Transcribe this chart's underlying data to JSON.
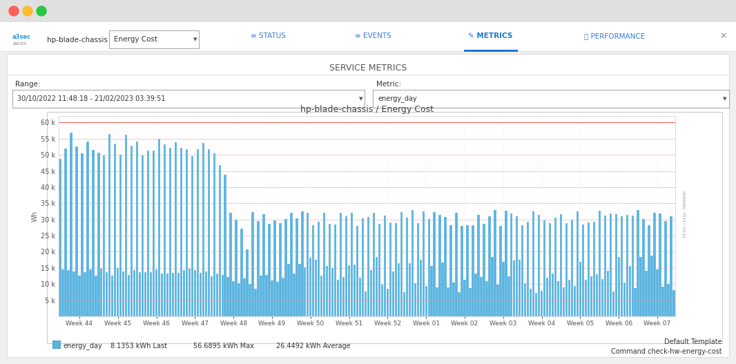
{
  "title": "hp-blade-chassis / Energy Cost",
  "ylabel": "Wh",
  "x_labels": [
    "Week 44",
    "Week 45",
    "Week 46",
    "Week 47",
    "Week 48",
    "Week 49",
    "Week 50",
    "Week 51",
    "Week 52",
    "Week 01",
    "Week 02",
    "Week 03",
    "Week 04",
    "Week 05",
    "Week 06",
    "Week 07"
  ],
  "bar_color": "#5ab4e0",
  "background_color": "#f0f0f0",
  "content_bg": "#ffffff",
  "plot_bg_color": "#ffffff",
  "grid_color_major": "#f5c0c0",
  "grid_color_minor": "#fde8e8",
  "ylim": [
    0,
    62000
  ],
  "legend_label": "energy_day",
  "legend_last": "8.1353 kWh Last",
  "legend_max": "56.6895 kWh Max",
  "legend_avg": "26.4492 kWh Average",
  "footer_right1": "Default Template",
  "footer_right2": "Command check-hw-energy-cost",
  "service_metrics_label": "SERVICE METRICS",
  "range_label": "Range:",
  "range_value": "30/10/2022 11:48:18 - 21/02/2023 03:39:51",
  "metric_label": "Metric:",
  "metric_value": "energy_day",
  "header_device": "hp-blade-chassis",
  "header_dropdown": "Energy Cost",
  "nav_status": "STATUS",
  "nav_events": "EVENTS",
  "nav_metrics": "METRICS",
  "nav_performance": "PERFORMANCE",
  "titlebar_color": "#e8e8e8",
  "nav_bar_color": "#ffffff",
  "btn_red": "#ff5f57",
  "btn_yellow": "#febc2e",
  "btn_green": "#28c840",
  "accent_blue": "#1976d2",
  "text_dark": "#333333",
  "text_gray": "#666666",
  "border_color": "#cccccc",
  "red_hline1": 60000,
  "red_hline2": 5000,
  "n_bars_per_week_high": 14,
  "n_bars_per_week_low": 14
}
